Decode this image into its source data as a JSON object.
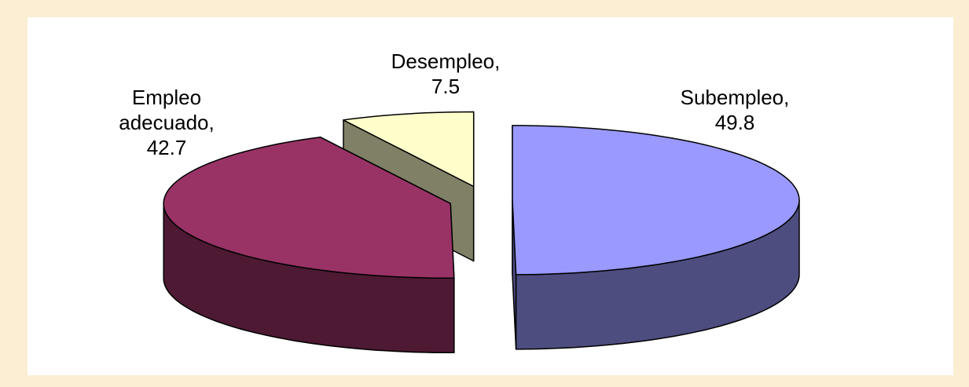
{
  "chart_data": {
    "type": "pie3d",
    "categories": [
      "Subempleo",
      "Empleo adecuado",
      "Desempleo"
    ],
    "values": [
      49.8,
      42.7,
      7.5
    ],
    "colors": [
      "#9999ff",
      "#993366",
      "#ffffcc"
    ],
    "side_colors": [
      "#4d4d80",
      "#4d1933",
      "#808066"
    ],
    "label_separator": ","
  }
}
